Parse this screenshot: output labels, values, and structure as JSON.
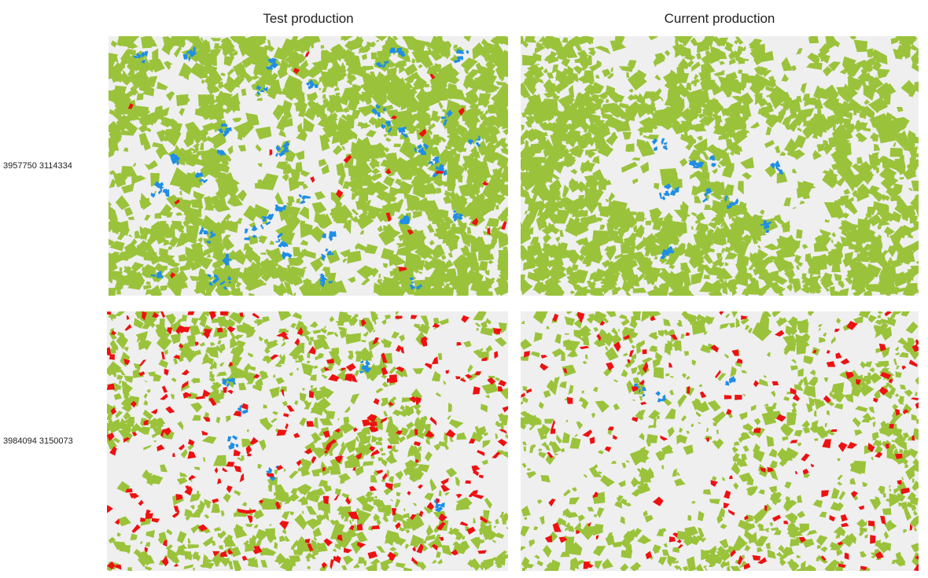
{
  "columns": [
    "Test production",
    "Current production"
  ],
  "rows": [
    "3957750 3114334",
    "3984094 3150073"
  ],
  "colors": {
    "background": "#efefef",
    "field": "#9ac33b",
    "red": "#ee1111",
    "blue": "#1e8ee6"
  }
}
